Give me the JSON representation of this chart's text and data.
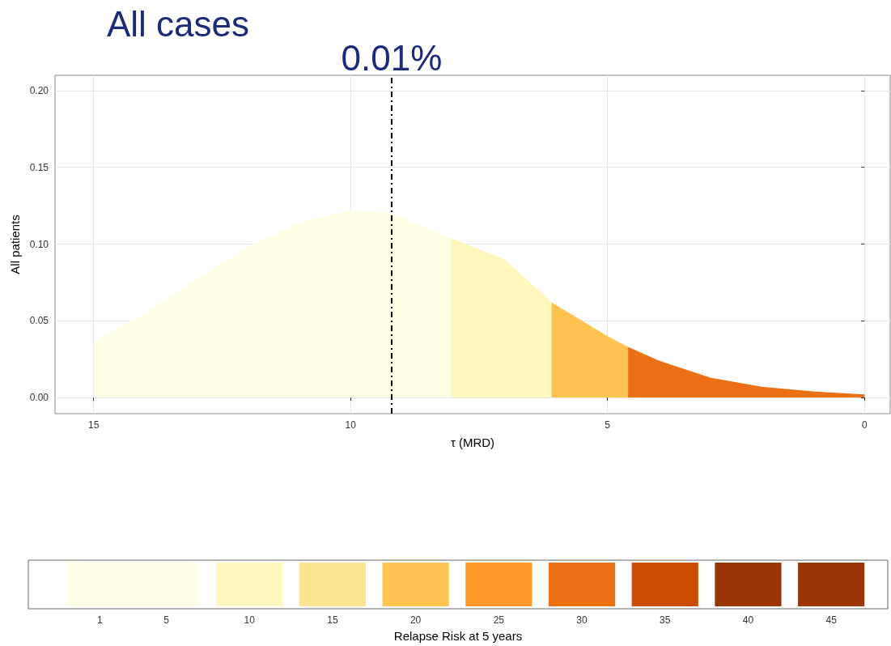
{
  "chart_data": [
    {
      "type": "area",
      "title": "All cases",
      "xlabel": "τ (MRD)",
      "ylabel": "All patients",
      "xlim": [
        15.75,
        -0.5
      ],
      "xticks": [
        15,
        10,
        5,
        0
      ],
      "ylim": [
        -0.0105,
        0.21
      ],
      "yticks": [
        {
          "value": 0,
          "label": "0.00"
        },
        {
          "value": 0.05,
          "label": "0.05"
        },
        {
          "value": 0.1,
          "label": "0.10"
        },
        {
          "value": 0.15,
          "label": "0.15"
        },
        {
          "value": 0.2,
          "label": "0.20"
        }
      ],
      "grid": true,
      "ref_lines": [
        {
          "axis": "x",
          "value": 9.2,
          "color": "#000000",
          "line_style": "dashdot"
        }
      ],
      "annotations": [
        {
          "text": "0.01%",
          "x": 9.2,
          "y": 0.21
        }
      ],
      "series": [
        {
          "color": "#ffffe5",
          "x": [
            15,
            14,
            13,
            12,
            11,
            10,
            9.2,
            8.05
          ],
          "values": [
            0.036,
            0.055,
            0.077,
            0.098,
            0.114,
            0.122,
            0.12,
            0.104
          ]
        },
        {
          "color": "#fff7bc",
          "x": [
            8.05,
            7,
            6.09
          ],
          "values": [
            0.104,
            0.09,
            0.062
          ]
        },
        {
          "color": "#fec44f",
          "x": [
            6.09,
            5,
            4.6
          ],
          "values": [
            0.062,
            0.04,
            0.033
          ]
        },
        {
          "color": "#ec7014",
          "x": [
            4.6,
            4,
            3,
            2,
            1,
            0
          ],
          "values": [
            0.033,
            0.024,
            0.013,
            0.007,
            0.004,
            0.002
          ]
        }
      ]
    },
    {
      "type": "bar",
      "orientation": "horizontal",
      "xlabel": "Relapse Risk at 5 years",
      "categories": [
        null
      ],
      "xlim": [
        -3.3,
        48.4
      ],
      "xticks": [
        1,
        5,
        10,
        15,
        20,
        25,
        30,
        35,
        40,
        45
      ],
      "tick_labels": "x",
      "series": [
        {
          "color": "#ffffe5",
          "base": [
            -1
          ],
          "values": [
            8
          ]
        },
        {
          "color": "#fff7bc",
          "base": [
            8
          ],
          "values": [
            4
          ]
        },
        {
          "color": "#fee391",
          "base": [
            13
          ],
          "values": [
            4
          ]
        },
        {
          "color": "#fec44f",
          "base": [
            18
          ],
          "values": [
            4
          ]
        },
        {
          "color": "#fe9929",
          "base": [
            23
          ],
          "values": [
            4
          ]
        },
        {
          "color": "#ec7014",
          "base": [
            28
          ],
          "values": [
            4
          ]
        },
        {
          "color": "#cc4c02",
          "base": [
            33
          ],
          "values": [
            4
          ]
        },
        {
          "color": "#993404",
          "base": [
            38
          ],
          "values": [
            4
          ]
        },
        {
          "color": "#993404",
          "base": [
            43
          ],
          "values": [
            4
          ]
        }
      ]
    }
  ]
}
